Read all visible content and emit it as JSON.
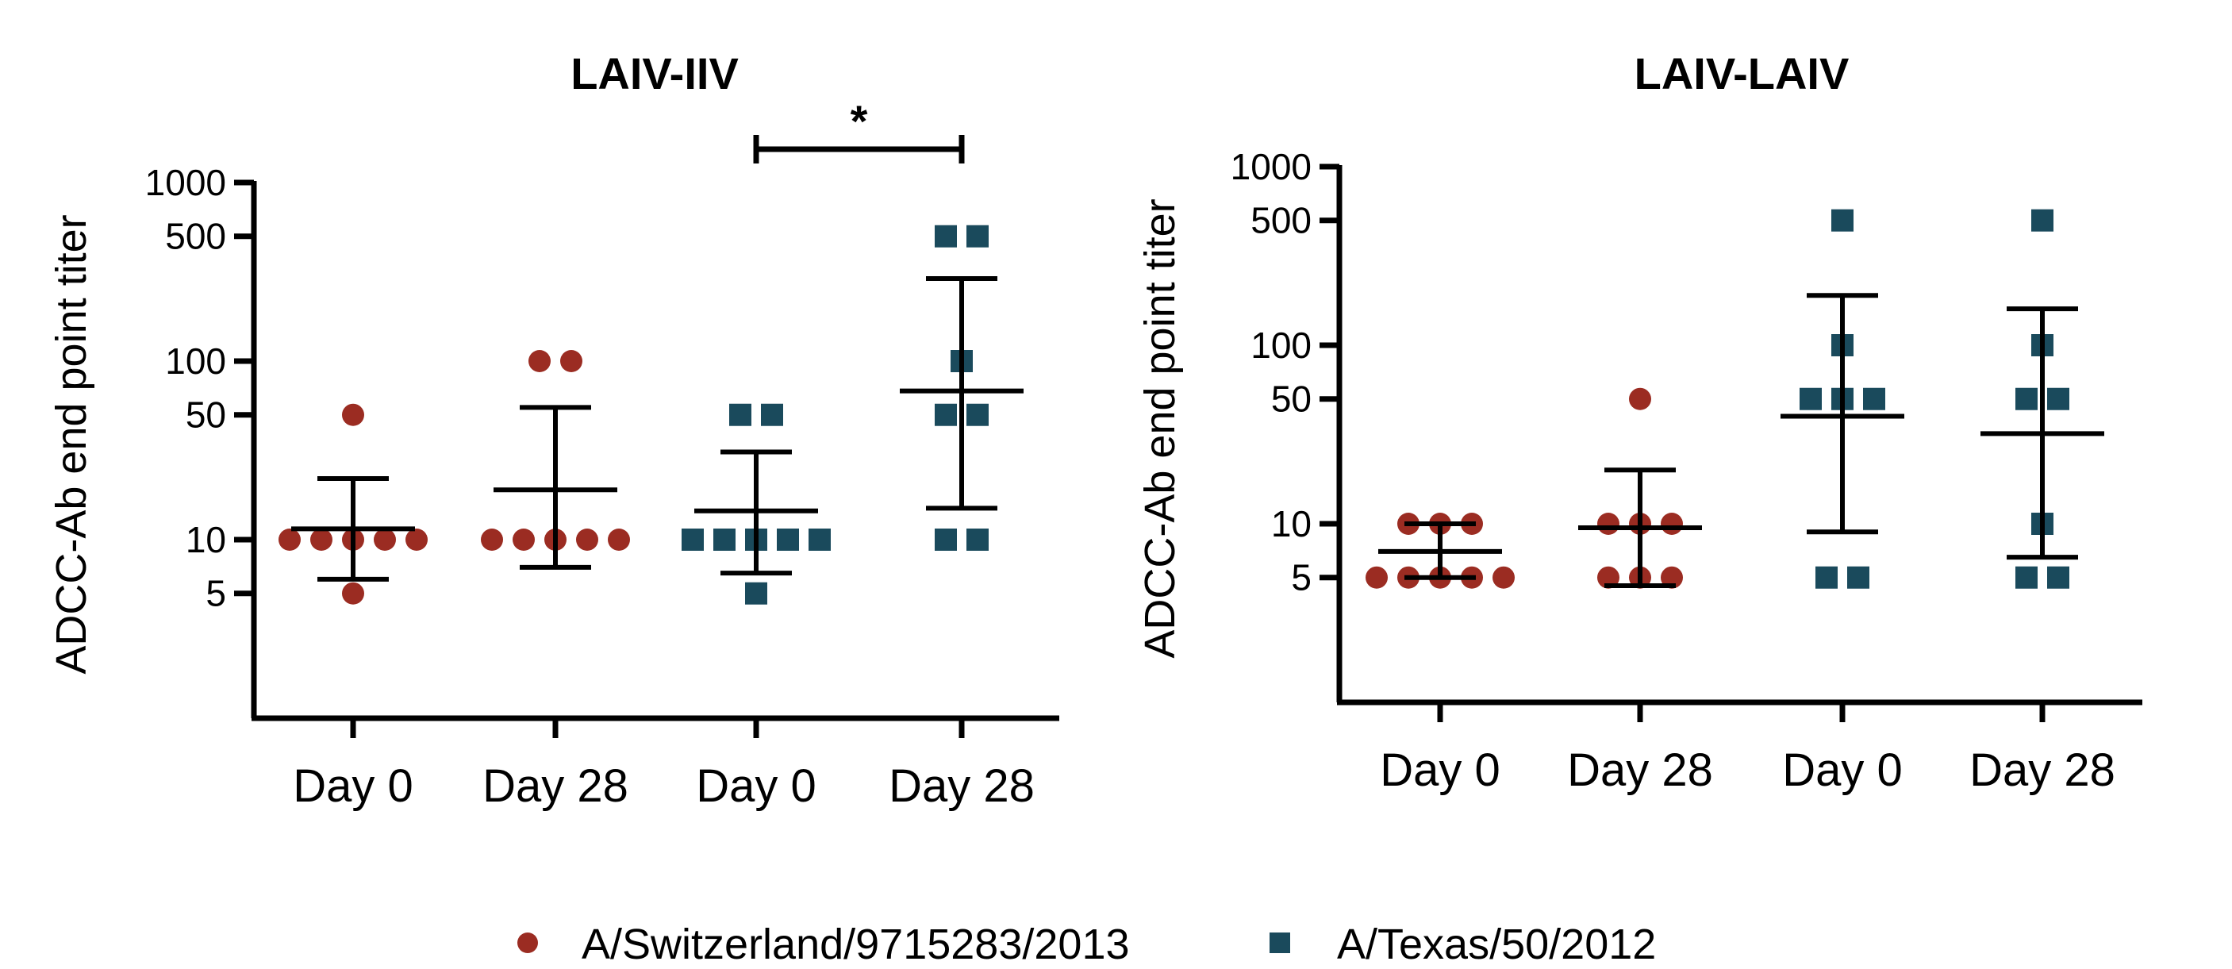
{
  "colors": {
    "switzerland": "#9B2C22",
    "texas": "#1A4A5C",
    "axis": "#000000"
  },
  "legend": [
    {
      "label": "A/Switzerland/9715283/2013",
      "marker": "circle",
      "color": "#9B2C22"
    },
    {
      "label": "A/Texas/50/2012",
      "marker": "square",
      "color": "#1A4A5C"
    }
  ],
  "chart_data": [
    {
      "type": "scatter",
      "title": "LAIV-IIV",
      "ylabel": "ADCC-Ab end point titer",
      "yscale": "log",
      "ylim": [
        1,
        1000
      ],
      "ytick_labels": [
        "1000",
        "500",
        "100",
        "50",
        "10",
        "5"
      ],
      "categories": [
        "Day 0",
        "Day 28",
        "Day 0",
        "Day 28"
      ],
      "significance": {
        "label": "*",
        "between": [
          2,
          3
        ]
      },
      "series": [
        {
          "strain": "A/Switzerland/9715283/2013",
          "marker": "circle",
          "category": 0,
          "points": [
            10,
            10,
            10,
            10,
            10,
            50,
            5
          ],
          "mean": 11.5,
          "err": [
            6,
            22
          ]
        },
        {
          "strain": "A/Switzerland/9715283/2013",
          "marker": "circle",
          "category": 1,
          "points": [
            10,
            10,
            10,
            10,
            10,
            100,
            100
          ],
          "mean": 19,
          "err": [
            7,
            55
          ]
        },
        {
          "strain": "A/Texas/50/2012",
          "marker": "square",
          "category": 2,
          "points": [
            10,
            10,
            10,
            10,
            10,
            50,
            50,
            5
          ],
          "mean": 14.5,
          "err": [
            6.5,
            31
          ]
        },
        {
          "strain": "A/Texas/50/2012",
          "marker": "square",
          "category": 3,
          "points": [
            500,
            500,
            100,
            50,
            50,
            10,
            10
          ],
          "mean": 68,
          "err": [
            15,
            290
          ]
        }
      ]
    },
    {
      "type": "scatter",
      "title": "LAIV-LAIV",
      "ylabel": "ADCC-Ab end point titer",
      "yscale": "log",
      "ylim": [
        1,
        1000
      ],
      "ytick_labels": [
        "1000",
        "500",
        "100",
        "50",
        "10",
        "5"
      ],
      "categories": [
        "Day 0",
        "Day 28",
        "Day 0",
        "Day 28"
      ],
      "series": [
        {
          "strain": "A/Switzerland/9715283/2013",
          "marker": "circle",
          "category": 0,
          "points": [
            10,
            10,
            10,
            5,
            5,
            5,
            5,
            5
          ],
          "mean": 7,
          "err": [
            5,
            10
          ]
        },
        {
          "strain": "A/Switzerland/9715283/2013",
          "marker": "circle",
          "category": 1,
          "points": [
            50,
            10,
            10,
            10,
            5,
            5,
            5
          ],
          "mean": 9.5,
          "err": [
            4.5,
            20
          ]
        },
        {
          "strain": "A/Texas/50/2012",
          "marker": "square",
          "category": 2,
          "points": [
            500,
            100,
            50,
            50,
            50,
            5,
            5
          ],
          "mean": 40,
          "err": [
            9,
            190
          ]
        },
        {
          "strain": "A/Texas/50/2012",
          "marker": "square",
          "category": 3,
          "points": [
            500,
            100,
            50,
            50,
            10,
            5,
            5
          ],
          "mean": 32,
          "err": [
            6.5,
            160
          ]
        }
      ]
    }
  ]
}
